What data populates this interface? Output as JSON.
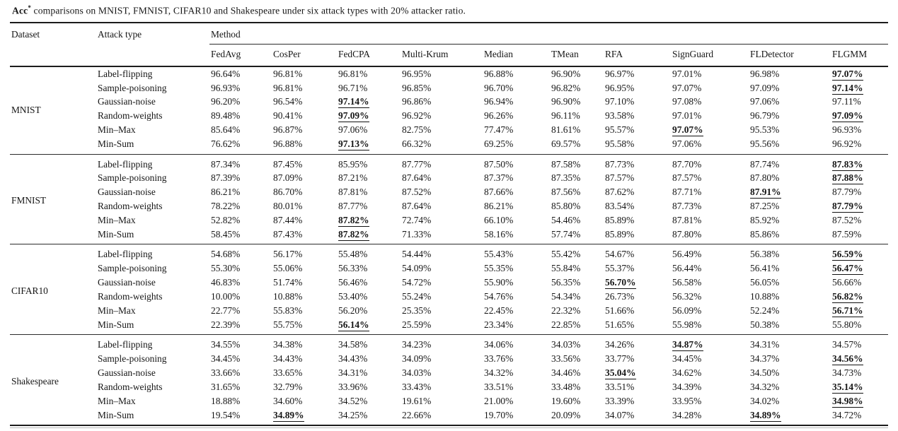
{
  "title": {
    "acc": "Acc",
    "superscript": "*",
    "rest": " comparisons on MNIST, FMNIST, CIFAR10 and Shakespeare under six attack types with 20% attacker ratio."
  },
  "header": {
    "dataset_label": "Dataset",
    "attack_type_label": "Attack type",
    "method_group_label": "Method",
    "methods": [
      "FedAvg",
      "CosPer",
      "FedCPA",
      "Multi-Krum",
      "Median",
      "TMean",
      "RFA",
      "SignGuard",
      "FLDetector",
      "FLGMM"
    ]
  },
  "table": {
    "groups": [
      {
        "dataset": "MNIST",
        "rows": [
          {
            "attack": "Label-flipping",
            "values": [
              "96.64%",
              "96.81%",
              "96.81%",
              "96.95%",
              "96.88%",
              "96.90%",
              "96.97%",
              "97.01%",
              "96.98%",
              "97.07%"
            ],
            "best": [
              9
            ]
          },
          {
            "attack": "Sample-poisoning",
            "values": [
              "96.93%",
              "96.81%",
              "96.71%",
              "96.85%",
              "96.70%",
              "96.82%",
              "96.95%",
              "97.07%",
              "97.09%",
              "97.14%"
            ],
            "best": [
              9
            ]
          },
          {
            "attack": "Gaussian-noise",
            "values": [
              "96.20%",
              "96.54%",
              "97.14%",
              "96.86%",
              "96.94%",
              "96.90%",
              "97.10%",
              "97.08%",
              "97.06%",
              "97.11%"
            ],
            "best": [
              2
            ]
          },
          {
            "attack": "Random-weights",
            "values": [
              "89.48%",
              "90.41%",
              "97.09%",
              "96.92%",
              "96.26%",
              "96.11%",
              "93.58%",
              "97.01%",
              "96.79%",
              "97.09%"
            ],
            "best": [
              2,
              9
            ]
          },
          {
            "attack": "Min–Max",
            "values": [
              "85.64%",
              "96.87%",
              "97.06%",
              "82.75%",
              "77.47%",
              "81.61%",
              "95.57%",
              "97.07%",
              "95.53%",
              "96.93%"
            ],
            "best": [
              7
            ]
          },
          {
            "attack": "Min-Sum",
            "values": [
              "76.62%",
              "96.88%",
              "97.13%",
              "66.32%",
              "69.25%",
              "69.57%",
              "95.58%",
              "97.06%",
              "95.56%",
              "96.92%"
            ],
            "best": [
              2
            ]
          }
        ]
      },
      {
        "dataset": "FMNIST",
        "rows": [
          {
            "attack": "Label-flipping",
            "values": [
              "87.34%",
              "87.45%",
              "85.95%",
              "87.77%",
              "87.50%",
              "87.58%",
              "87.73%",
              "87.70%",
              "87.74%",
              "87.83%"
            ],
            "best": [
              9
            ]
          },
          {
            "attack": "Sample-poisoning",
            "values": [
              "87.39%",
              "87.09%",
              "87.21%",
              "87.64%",
              "87.37%",
              "87.35%",
              "87.57%",
              "87.57%",
              "87.80%",
              "87.88%"
            ],
            "best": [
              9
            ]
          },
          {
            "attack": "Gaussian-noise",
            "values": [
              "86.21%",
              "86.70%",
              "87.81%",
              "87.52%",
              "87.66%",
              "87.56%",
              "87.62%",
              "87.71%",
              "87.91%",
              "87.79%"
            ],
            "best": [
              8
            ]
          },
          {
            "attack": "Random-weights",
            "values": [
              "78.22%",
              "80.01%",
              "87.77%",
              "87.64%",
              "86.21%",
              "85.80%",
              "83.54%",
              "87.73%",
              "87.25%",
              "87.79%"
            ],
            "best": [
              9
            ]
          },
          {
            "attack": "Min–Max",
            "values": [
              "52.82%",
              "87.44%",
              "87.82%",
              "72.74%",
              "66.10%",
              "54.46%",
              "85.89%",
              "87.81%",
              "85.92%",
              "87.52%"
            ],
            "best": [
              2
            ]
          },
          {
            "attack": "Min-Sum",
            "values": [
              "58.45%",
              "87.43%",
              "87.82%",
              "71.33%",
              "58.16%",
              "57.74%",
              "85.89%",
              "87.80%",
              "85.86%",
              "87.59%"
            ],
            "best": [
              2
            ]
          }
        ]
      },
      {
        "dataset": "CIFAR10",
        "rows": [
          {
            "attack": "Label-flipping",
            "values": [
              "54.68%",
              "56.17%",
              "55.48%",
              "54.44%",
              "55.43%",
              "55.42%",
              "54.67%",
              "56.49%",
              "56.38%",
              "56.59%"
            ],
            "best": [
              9
            ]
          },
          {
            "attack": "Sample-poisoning",
            "values": [
              "55.30%",
              "55.06%",
              "56.33%",
              "54.09%",
              "55.35%",
              "55.84%",
              "55.37%",
              "56.44%",
              "56.41%",
              "56.47%"
            ],
            "best": [
              9
            ]
          },
          {
            "attack": "Gaussian-noise",
            "values": [
              "46.83%",
              "51.74%",
              "56.46%",
              "54.72%",
              "55.90%",
              "56.35%",
              "56.70%",
              "56.58%",
              "56.05%",
              "56.66%"
            ],
            "best": [
              6
            ]
          },
          {
            "attack": "Random-weights",
            "values": [
              "10.00%",
              "10.88%",
              "53.40%",
              "55.24%",
              "54.76%",
              "54.34%",
              "26.73%",
              "56.32%",
              "10.88%",
              "56.82%"
            ],
            "best": [
              9
            ]
          },
          {
            "attack": "Min–Max",
            "values": [
              "22.77%",
              "55.83%",
              "56.20%",
              "25.35%",
              "22.45%",
              "22.32%",
              "51.66%",
              "56.09%",
              "52.24%",
              "56.71%"
            ],
            "best": [
              9
            ]
          },
          {
            "attack": "Min-Sum",
            "values": [
              "22.39%",
              "55.75%",
              "56.14%",
              "25.59%",
              "23.34%",
              "22.85%",
              "51.65%",
              "55.98%",
              "50.38%",
              "55.80%"
            ],
            "best": [
              2
            ]
          }
        ]
      },
      {
        "dataset": "Shakespeare",
        "rows": [
          {
            "attack": "Label-flipping",
            "values": [
              "34.55%",
              "34.38%",
              "34.58%",
              "34.23%",
              "34.06%",
              "34.03%",
              "34.26%",
              "34.87%",
              "34.31%",
              "34.57%"
            ],
            "best": [
              7
            ]
          },
          {
            "attack": "Sample-poisoning",
            "values": [
              "34.45%",
              "34.43%",
              "34.43%",
              "34.09%",
              "33.76%",
              "33.56%",
              "33.77%",
              "34.45%",
              "34.37%",
              "34.56%"
            ],
            "best": [
              9
            ]
          },
          {
            "attack": "Gaussian-noise",
            "values": [
              "33.66%",
              "33.65%",
              "34.31%",
              "34.03%",
              "34.32%",
              "34.46%",
              "35.04%",
              "34.62%",
              "34.50%",
              "34.73%"
            ],
            "best": [
              6
            ]
          },
          {
            "attack": "Random-weights",
            "values": [
              "31.65%",
              "32.79%",
              "33.96%",
              "33.43%",
              "33.51%",
              "33.48%",
              "33.51%",
              "34.39%",
              "34.32%",
              "35.14%"
            ],
            "best": [
              9
            ]
          },
          {
            "attack": "Min–Max",
            "values": [
              "18.88%",
              "34.60%",
              "34.52%",
              "19.61%",
              "21.00%",
              "19.60%",
              "33.39%",
              "33.95%",
              "34.02%",
              "34.98%"
            ],
            "best": [
              9
            ]
          },
          {
            "attack": "Min-Sum",
            "values": [
              "19.54%",
              "34.89%",
              "34.25%",
              "22.66%",
              "19.70%",
              "20.09%",
              "34.07%",
              "34.28%",
              "34.89%",
              "34.72%"
            ],
            "best": [
              1,
              8
            ]
          }
        ]
      }
    ]
  }
}
